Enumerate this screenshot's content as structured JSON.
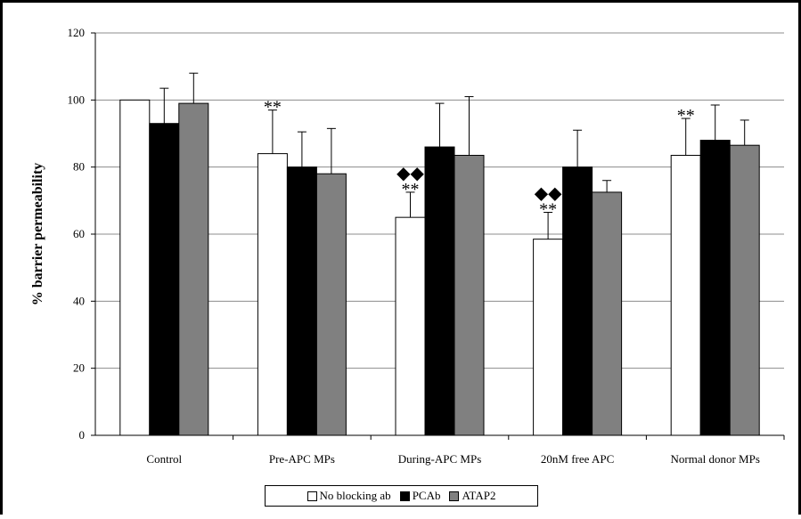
{
  "chart_data": {
    "type": "bar",
    "title": "",
    "xlabel": "",
    "ylabel": "% barrier permeability",
    "ylim": [
      0,
      120
    ],
    "yticks": [
      0,
      20,
      40,
      60,
      80,
      100,
      120
    ],
    "grid": true,
    "legend_position": "bottom",
    "categories": [
      "Control",
      "Pre-APC MPs",
      "During-APC MPs",
      "20nM free APC",
      "Normal donor MPs"
    ],
    "series": [
      {
        "name": "No blocking ab",
        "color": "#ffffff",
        "values": [
          100,
          84,
          65,
          58.5,
          83.5
        ],
        "errors": [
          0,
          13,
          7.5,
          8,
          11
        ]
      },
      {
        "name": "PCAb",
        "color": "#000000",
        "values": [
          93,
          80,
          86,
          80,
          88
        ],
        "errors": [
          10.5,
          10.5,
          13,
          11,
          10.5
        ]
      },
      {
        "name": "ATAP2",
        "color": "#808080",
        "values": [
          99,
          78,
          83.5,
          72.5,
          86.5
        ],
        "errors": [
          9,
          13.5,
          17.5,
          3.5,
          7.5
        ]
      }
    ],
    "annotations": [
      {
        "category": "Pre-APC MPs",
        "series": "No blocking ab",
        "lines": [
          "**"
        ]
      },
      {
        "category": "During-APC MPs",
        "series": "No blocking ab",
        "lines": [
          "◆◆",
          "**"
        ]
      },
      {
        "category": "20nM free APC",
        "series": "No blocking ab",
        "lines": [
          "◆◆",
          "**"
        ]
      },
      {
        "category": "Normal donor MPs",
        "series": "No blocking ab",
        "lines": [
          "**"
        ]
      }
    ]
  }
}
